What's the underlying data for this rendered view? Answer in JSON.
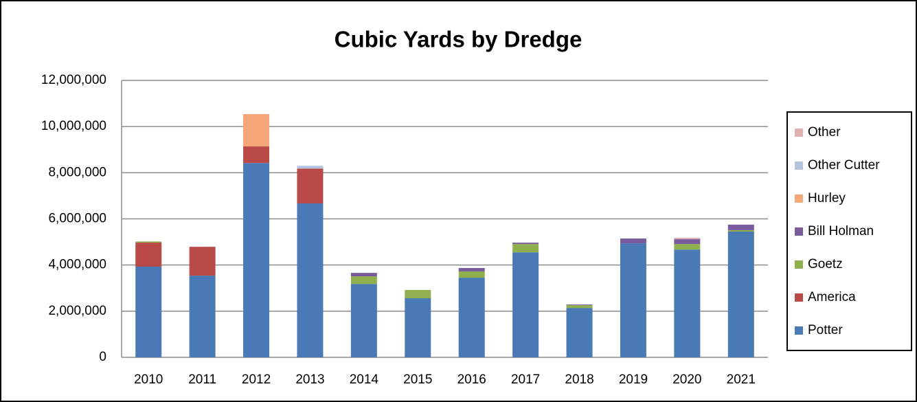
{
  "chart_data": {
    "type": "stacked_bar",
    "title": "Cubic Yards by Dredge",
    "categories": [
      "2010",
      "2011",
      "2012",
      "2013",
      "2014",
      "2015",
      "2016",
      "2017",
      "2018",
      "2019",
      "2020",
      "2021"
    ],
    "series": [
      {
        "name": "Potter",
        "color": "#4a7ab5",
        "values": [
          3930000,
          3540000,
          8420000,
          6670000,
          3180000,
          2560000,
          3450000,
          4550000,
          2140000,
          4940000,
          4670000,
          5450000
        ]
      },
      {
        "name": "America",
        "color": "#b94a48",
        "values": [
          1040000,
          1250000,
          720000,
          1510000,
          0,
          0,
          0,
          0,
          0,
          0,
          0,
          0
        ]
      },
      {
        "name": "Goetz",
        "color": "#8fb04c",
        "values": [
          50000,
          0,
          0,
          0,
          330000,
          360000,
          270000,
          360000,
          120000,
          0,
          240000,
          60000
        ]
      },
      {
        "name": "Bill Holman",
        "color": "#7a5c9e",
        "values": [
          0,
          0,
          0,
          0,
          150000,
          0,
          150000,
          60000,
          30000,
          210000,
          210000,
          240000
        ]
      },
      {
        "name": "Hurley",
        "color": "#f6a777",
        "values": [
          0,
          0,
          1400000,
          0,
          0,
          0,
          0,
          0,
          0,
          0,
          0,
          0
        ]
      },
      {
        "name": "Other Cutter",
        "color": "#b3c5de",
        "values": [
          0,
          0,
          0,
          120000,
          0,
          0,
          0,
          0,
          0,
          0,
          0,
          0
        ]
      },
      {
        "name": "Other",
        "color": "#e0b0b0",
        "values": [
          0,
          0,
          0,
          0,
          0,
          0,
          0,
          0,
          0,
          0,
          60000,
          0
        ]
      }
    ],
    "ylim": [
      0,
      12000000
    ],
    "yticks": [
      0,
      {
        "value": 2000000,
        "label": "2,000,000"
      },
      {
        "value": 4000000,
        "label": "4,000,000"
      },
      {
        "value": 6000000,
        "label": "6,000,000"
      },
      {
        "value": 8000000,
        "label": "8,000,000"
      },
      {
        "value": 10000000,
        "label": "10,000,000"
      },
      {
        "value": 12000000,
        "label": "12,000,000"
      }
    ],
    "grid": true,
    "legend": "right"
  }
}
